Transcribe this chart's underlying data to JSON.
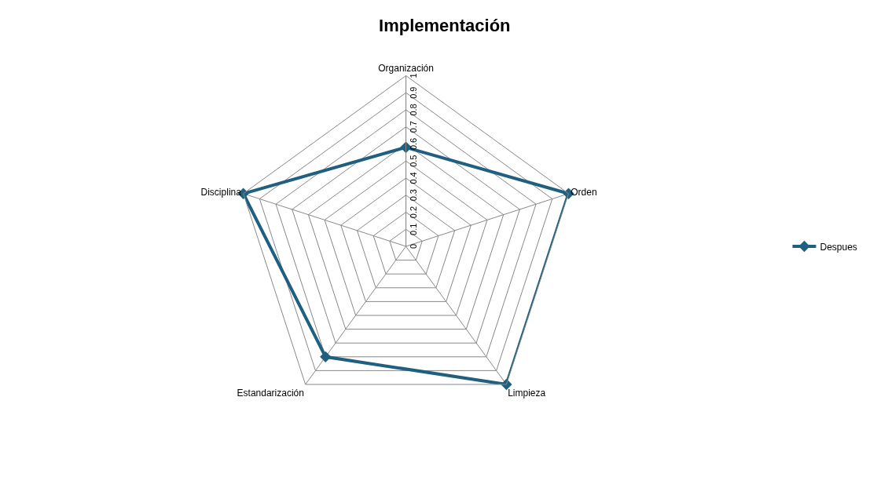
{
  "chart_data": {
    "type": "radar",
    "title": "Implementación",
    "categories": [
      "Organización",
      "Orden",
      "Limpieza",
      "Estandarización",
      "Disciplina"
    ],
    "series": [
      {
        "name": "Despues",
        "color": "#1f5f7f",
        "values": [
          0.58,
          1,
          1,
          0.8,
          1
        ]
      }
    ],
    "ylim": [
      0,
      1
    ],
    "yticks": [
      0,
      0.1,
      0.2,
      0.3,
      0.4,
      0.5,
      0.6,
      0.7,
      0.8,
      0.9,
      1
    ],
    "grid": true,
    "legend": "right",
    "marker": "diamond",
    "line_style": "solid"
  }
}
